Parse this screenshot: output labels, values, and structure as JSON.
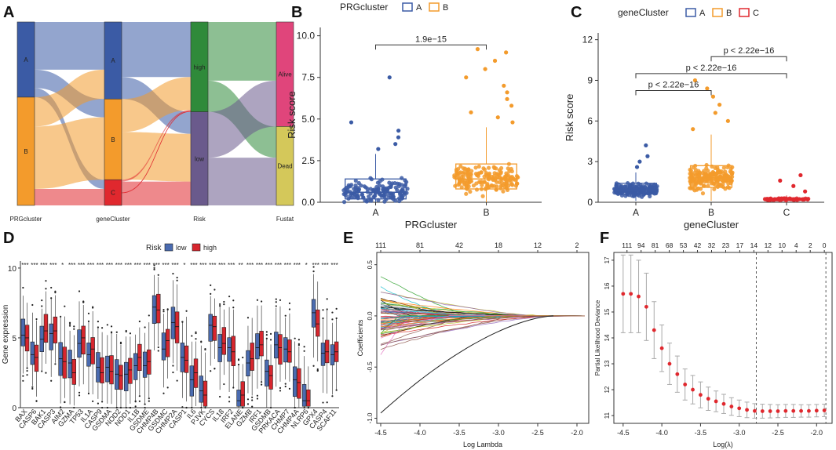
{
  "colors": {
    "A": "#3b5ba5",
    "B": "#f39b2c",
    "C": "#e0282e",
    "low": "#4a6bb0",
    "high": "#d7262e",
    "high_node": "#2f8a3a",
    "low_node": "#6a5a8c",
    "alive": "#e0457b",
    "dead": "#d4c85a"
  },
  "chart_data": [
    {
      "panel": "A",
      "type": "sankey",
      "axes": [
        "PRGcluster",
        "geneCluster",
        "Risk",
        "Fustat"
      ],
      "nodes": {
        "PRGcluster": [
          {
            "name": "A",
            "value": 0.32
          },
          {
            "name": "B",
            "value": 0.68
          }
        ],
        "geneCluster": [
          {
            "name": "A",
            "value": 0.42
          },
          {
            "name": "B",
            "value": 0.44
          },
          {
            "name": "C",
            "value": 0.14
          }
        ],
        "Risk": [
          {
            "name": "high",
            "value": 0.48
          },
          {
            "name": "low",
            "value": 0.52
          }
        ],
        "Fustat": [
          {
            "name": "Alive",
            "value": 0.57
          },
          {
            "name": "Dead",
            "value": 0.43
          }
        ]
      },
      "node_labels": [
        "A",
        "B",
        "A",
        "B",
        "C",
        "high",
        "low",
        "Alive",
        "Dead"
      ]
    },
    {
      "panel": "B",
      "type": "boxplot",
      "legend_title": "PRGcluster",
      "categories": [
        "A",
        "B"
      ],
      "stats": [
        {
          "min": 0.0,
          "q1": 0.2,
          "median": 0.6,
          "q3": 1.4,
          "max": 2.9
        },
        {
          "min": 0.0,
          "q1": 0.8,
          "median": 1.4,
          "q3": 2.3,
          "max": 4.5
        }
      ],
      "outliers": [
        [
          3.2,
          3.5,
          3.9,
          4.3,
          4.8,
          7.5
        ],
        [
          4.8,
          5.1,
          5.4,
          5.8,
          6.2,
          6.6,
          7.0,
          7.5,
          8.0,
          8.5,
          9.0,
          9.2
        ]
      ],
      "xlabel": "PRGcluster",
      "ylabel": "Risk score",
      "yticks": [
        "0.0",
        "2.5",
        "5.0",
        "7.5",
        "10.0"
      ],
      "ylim": [
        0,
        10.5
      ],
      "comparisons": [
        {
          "pair": [
            "A",
            "B"
          ],
          "label": "1.9e−15"
        }
      ]
    },
    {
      "panel": "C",
      "type": "boxplot",
      "legend_title": "geneCluster",
      "categories": [
        "A",
        "B",
        "C"
      ],
      "stats": [
        {
          "min": 0.1,
          "q1": 0.6,
          "median": 0.9,
          "q3": 1.4,
          "max": 2.2
        },
        {
          "min": 0.1,
          "q1": 1.1,
          "median": 1.8,
          "q3": 2.7,
          "max": 5.0
        },
        {
          "min": 0.05,
          "q1": 0.15,
          "median": 0.22,
          "q3": 0.3,
          "max": 0.5
        }
      ],
      "outliers": [
        [
          2.6,
          3.0,
          3.4,
          4.2
        ],
        [
          5.4,
          6.0,
          6.6,
          7.2,
          7.8,
          8.4,
          9.0
        ],
        [
          0.8,
          1.2,
          1.6,
          2.0
        ]
      ],
      "xlabel": "geneCluster",
      "ylabel": "Risk score",
      "yticks": [
        "0",
        "3",
        "6",
        "9",
        "12"
      ],
      "ylim": [
        0,
        12.5
      ],
      "comparisons": [
        {
          "pair": [
            "A",
            "B"
          ],
          "label": "p < 2.22e−16"
        },
        {
          "pair": [
            "A",
            "C"
          ],
          "label": "p < 2.22e−16"
        },
        {
          "pair": [
            "B",
            "C"
          ],
          "label": "p < 2.22e−16"
        }
      ]
    },
    {
      "panel": "D",
      "type": "grouped_boxplot",
      "legend_title": "Risk",
      "series": [
        "low",
        "high"
      ],
      "categories": [
        "BAX",
        "CASP6",
        "BAK1",
        "CASP3",
        "AIM2",
        "GZMA",
        "TP53",
        "IL1A",
        "CASP9",
        "GSDMA",
        "NOD2",
        "NOD1",
        "IL1B",
        "GSDME",
        "CHMP4B",
        "GSDMC",
        "CHMP2A",
        "CASP1",
        "IL6",
        "PJVK",
        "CYCS",
        "IL18",
        "IRF2",
        "ELANE",
        "GZMB",
        "IRF1",
        "GSDMB",
        "PRKACA",
        "CHMP7",
        "CHMP4A",
        "NLRP6",
        "GPX4",
        "CASP4",
        "SCAF11"
      ],
      "medians_low": [
        5.2,
        3.8,
        4.9,
        5.3,
        3.5,
        3.2,
        4.6,
        3.8,
        2.9,
        2.9,
        2.4,
        2.4,
        3.0,
        3.0,
        7.2,
        4.2,
        6.1,
        3.6,
        2.0,
        1.2,
        5.9,
        4.3,
        4.3,
        0.5,
        3.2,
        4.3,
        2.6,
        4.5,
        4.2,
        2.0,
        0.5,
        6.8,
        3.9,
        3.8
      ],
      "medians_high": [
        5.0,
        3.6,
        5.5,
        5.5,
        3.3,
        2.5,
        5.0,
        4.2,
        2.5,
        2.6,
        2.3,
        2.7,
        3.6,
        3.3,
        7.0,
        4.8,
        5.8,
        3.4,
        2.5,
        0.9,
        5.8,
        4.6,
        4.0,
        0.9,
        3.5,
        4.5,
        2.3,
        4.3,
        4.0,
        1.8,
        0.5,
        6.0,
        4.0,
        4.0
      ],
      "significance": [
        "***",
        "***",
        "***",
        "***",
        "*",
        "***",
        "***",
        "***",
        "***",
        "***",
        "***",
        "***",
        "***",
        "***",
        "***",
        "***",
        "***",
        "*",
        "***",
        "***",
        "***",
        "***",
        "***",
        "**",
        "***",
        "***",
        "***",
        "***",
        "***",
        "***",
        "*",
        "***",
        "***",
        "***"
      ],
      "ylabel": "Gene expression",
      "yticks": [
        "0",
        "5",
        "10"
      ],
      "ylim": [
        0,
        10.5
      ]
    },
    {
      "panel": "E",
      "type": "line",
      "description": "LASSO coefficient paths",
      "xlabel": "Log Lambda",
      "ylabel": "Coefficients",
      "xticks": [
        "-4.5",
        "-4.0",
        "-3.5",
        "-3.0",
        "-2.5",
        "-2.0"
      ],
      "yticks": [
        "-1.0",
        "-0.5",
        "0.0",
        "0.5"
      ],
      "top_ticks": [
        "111",
        "81",
        "42",
        "18",
        "12",
        "2"
      ],
      "xlim": [
        -4.55,
        -1.85
      ],
      "ylim": [
        -1.05,
        0.62
      ]
    },
    {
      "panel": "F",
      "type": "scatter",
      "description": "Cross-validation partial likelihood deviance",
      "xlabel": "Log(λ)",
      "ylabel": "Partial Likelihood Deviance",
      "x": [
        -4.5,
        -4.4,
        -4.3,
        -4.2,
        -4.1,
        -4.0,
        -3.9,
        -3.8,
        -3.7,
        -3.6,
        -3.5,
        -3.4,
        -3.3,
        -3.2,
        -3.1,
        -3.0,
        -2.9,
        -2.8,
        -2.7,
        -2.6,
        -2.5,
        -2.4,
        -2.3,
        -2.2,
        -2.1,
        -2.0,
        -1.9
      ],
      "y": [
        15.7,
        15.7,
        15.6,
        15.2,
        14.3,
        13.6,
        13.0,
        12.6,
        12.2,
        12.0,
        11.8,
        11.65,
        11.55,
        11.45,
        11.35,
        11.28,
        11.22,
        11.18,
        11.17,
        11.17,
        11.17,
        11.18,
        11.18,
        11.18,
        11.18,
        11.19,
        11.2
      ],
      "err": [
        1.5,
        1.5,
        1.4,
        1.3,
        1.1,
        0.9,
        0.8,
        0.7,
        0.6,
        0.55,
        0.5,
        0.45,
        0.4,
        0.37,
        0.34,
        0.32,
        0.3,
        0.28,
        0.27,
        0.26,
        0.25,
        0.25,
        0.25,
        0.24,
        0.24,
        0.24,
        0.24
      ],
      "vlines": [
        -2.78,
        -1.88
      ],
      "xticks": [
        "-4.5",
        "-4.0",
        "-3.5",
        "-3.0",
        "-2.5",
        "-2.0"
      ],
      "yticks": [
        "11",
        "12",
        "13",
        "14",
        "15",
        "16",
        "17"
      ],
      "top_ticks": [
        "111",
        "94",
        "81",
        "68",
        "53",
        "42",
        "32",
        "23",
        "17",
        "14",
        "12",
        "10",
        "4",
        "2",
        "0"
      ],
      "xlim": [
        -4.62,
        -1.8
      ],
      "ylim": [
        10.7,
        17.3
      ]
    }
  ]
}
